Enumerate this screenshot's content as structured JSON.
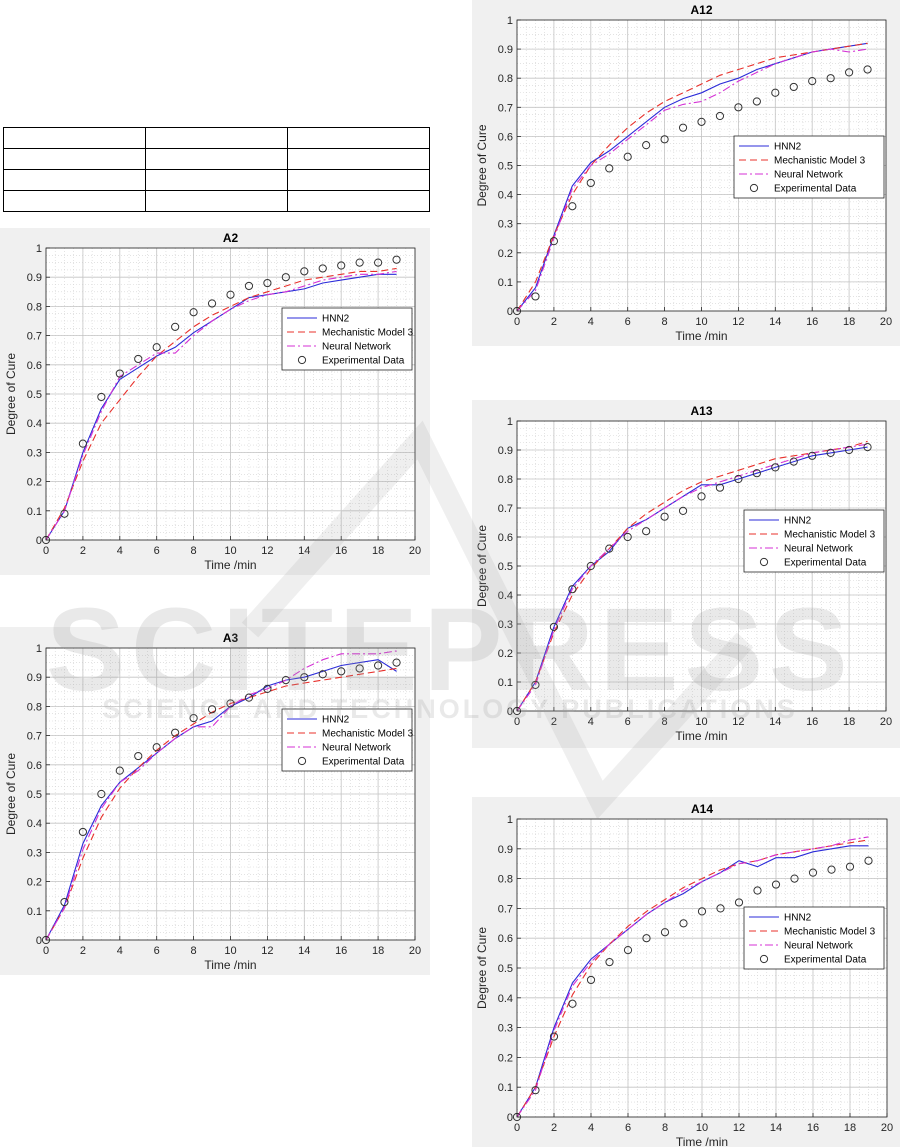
{
  "table": {
    "rows": 4,
    "cols": 3
  },
  "legend_entries": [
    "HNN2",
    "Mechanistic Model 3",
    "Neural Network",
    "Experimental Data"
  ],
  "colors": {
    "hnn2": "#2b2bd9",
    "mechanistic": "#e8302b",
    "neural": "#d431d4",
    "experimental": "#333333",
    "panel_bg": "#f0f0f0"
  },
  "watermark": {
    "line1": "SCITEPRESS",
    "line2": "SCIENCE AND TECHNOLOGY PUBLICATIONS"
  },
  "chart_data": [
    {
      "type": "line",
      "title": "A2",
      "xlabel": "Time /min",
      "ylabel": "Degree of Cure",
      "xlim": [
        0,
        20
      ],
      "ylim": [
        0,
        1
      ],
      "grid": true,
      "minor_grid": true,
      "legend_position": "middle-right",
      "x_ticks": [
        0,
        2,
        4,
        6,
        8,
        10,
        12,
        14,
        16,
        18,
        20
      ],
      "y_ticks": [
        0,
        0.1,
        0.2,
        0.3,
        0.4,
        0.5,
        0.6,
        0.7,
        0.8,
        0.9,
        1
      ],
      "series": [
        {
          "name": "HNN2",
          "style": "solid",
          "x": [
            0,
            1,
            2,
            3,
            4,
            5,
            6,
            7,
            8,
            9,
            10,
            11,
            12,
            13,
            14,
            15,
            16,
            17,
            18,
            19
          ],
          "y": [
            0,
            0.1,
            0.3,
            0.45,
            0.55,
            0.59,
            0.63,
            0.66,
            0.71,
            0.75,
            0.79,
            0.83,
            0.84,
            0.85,
            0.86,
            0.88,
            0.89,
            0.9,
            0.91,
            0.91
          ]
        },
        {
          "name": "Mechanistic Model 3",
          "style": "dashed",
          "x": [
            0,
            1,
            2,
            3,
            4,
            5,
            6,
            7,
            8,
            9,
            10,
            11,
            12,
            13,
            14,
            15,
            16,
            17,
            18,
            19
          ],
          "y": [
            0,
            0.11,
            0.27,
            0.4,
            0.48,
            0.56,
            0.63,
            0.68,
            0.73,
            0.77,
            0.8,
            0.83,
            0.85,
            0.87,
            0.89,
            0.9,
            0.91,
            0.92,
            0.92,
            0.93
          ]
        },
        {
          "name": "Neural Network",
          "style": "dashdot",
          "x": [
            0,
            1,
            2,
            3,
            4,
            5,
            6,
            7,
            8,
            9,
            10,
            11,
            12,
            13,
            14,
            15,
            16,
            17,
            18,
            19
          ],
          "y": [
            0,
            0.1,
            0.29,
            0.44,
            0.56,
            0.6,
            0.64,
            0.64,
            0.7,
            0.75,
            0.79,
            0.82,
            0.84,
            0.85,
            0.87,
            0.89,
            0.9,
            0.91,
            0.91,
            0.92
          ]
        },
        {
          "name": "Experimental Data",
          "style": "markers",
          "x": [
            0,
            1,
            2,
            3,
            4,
            5,
            6,
            7,
            8,
            9,
            10,
            11,
            12,
            13,
            14,
            15,
            16,
            17,
            18,
            19
          ],
          "y": [
            0,
            0.09,
            0.33,
            0.49,
            0.57,
            0.62,
            0.66,
            0.73,
            0.78,
            0.81,
            0.84,
            0.87,
            0.88,
            0.9,
            0.92,
            0.93,
            0.94,
            0.95,
            0.95,
            0.96
          ]
        }
      ]
    },
    {
      "type": "line",
      "title": "A3",
      "xlabel": "Time /min",
      "ylabel": "Degree of Cure",
      "xlim": [
        0,
        20
      ],
      "ylim": [
        0,
        1
      ],
      "grid": true,
      "minor_grid": true,
      "legend_position": "top-right",
      "x_ticks": [
        0,
        2,
        4,
        6,
        8,
        10,
        12,
        14,
        16,
        18,
        20
      ],
      "y_ticks": [
        0,
        0.1,
        0.2,
        0.3,
        0.4,
        0.5,
        0.6,
        0.7,
        0.8,
        0.9,
        1
      ],
      "series": [
        {
          "name": "HNN2",
          "style": "solid",
          "x": [
            0,
            1,
            2,
            3,
            4,
            5,
            6,
            7,
            8,
            9,
            10,
            11,
            12,
            13,
            14,
            15,
            16,
            17,
            18,
            19
          ],
          "y": [
            0,
            0.12,
            0.33,
            0.46,
            0.54,
            0.59,
            0.64,
            0.69,
            0.73,
            0.75,
            0.8,
            0.83,
            0.87,
            0.89,
            0.9,
            0.92,
            0.94,
            0.95,
            0.96,
            0.92
          ]
        },
        {
          "name": "Mechanistic Model 3",
          "style": "dashed",
          "x": [
            0,
            1,
            2,
            3,
            4,
            5,
            6,
            7,
            8,
            9,
            10,
            11,
            12,
            13,
            14,
            15,
            16,
            17,
            18,
            19
          ],
          "y": [
            0,
            0.11,
            0.28,
            0.42,
            0.52,
            0.59,
            0.65,
            0.7,
            0.74,
            0.78,
            0.81,
            0.83,
            0.85,
            0.87,
            0.88,
            0.89,
            0.9,
            0.91,
            0.92,
            0.93
          ]
        },
        {
          "name": "Neural Network",
          "style": "dashdot",
          "x": [
            0,
            1,
            2,
            3,
            4,
            5,
            6,
            7,
            8,
            9,
            10,
            11,
            12,
            13,
            14,
            15,
            16,
            17,
            18,
            19
          ],
          "y": [
            0,
            0.11,
            0.31,
            0.45,
            0.54,
            0.58,
            0.64,
            0.69,
            0.73,
            0.73,
            0.8,
            0.84,
            0.86,
            0.89,
            0.93,
            0.96,
            0.98,
            0.98,
            0.98,
            0.99
          ]
        },
        {
          "name": "Experimental Data",
          "style": "markers",
          "x": [
            0,
            1,
            2,
            3,
            4,
            5,
            6,
            7,
            8,
            9,
            10,
            11,
            12,
            13,
            14,
            15,
            16,
            17,
            18,
            19
          ],
          "y": [
            0,
            0.13,
            0.37,
            0.5,
            0.58,
            0.63,
            0.66,
            0.71,
            0.76,
            0.79,
            0.81,
            0.83,
            0.86,
            0.89,
            0.9,
            0.91,
            0.92,
            0.93,
            0.94,
            0.95
          ]
        }
      ]
    },
    {
      "type": "line",
      "title": "A12",
      "xlabel": "Time /min",
      "ylabel": "Degree of Cure",
      "xlim": [
        0,
        20
      ],
      "ylim": [
        0,
        1
      ],
      "grid": true,
      "minor_grid": true,
      "legend_position": "middle-right",
      "x_ticks": [
        0,
        2,
        4,
        6,
        8,
        10,
        12,
        14,
        16,
        18,
        20
      ],
      "y_ticks": [
        0,
        0.1,
        0.2,
        0.3,
        0.4,
        0.5,
        0.6,
        0.7,
        0.8,
        0.9,
        1
      ],
      "series": [
        {
          "name": "HNN2",
          "style": "solid",
          "x": [
            0,
            1,
            2,
            3,
            4,
            5,
            6,
            7,
            8,
            9,
            10,
            11,
            12,
            13,
            14,
            15,
            16,
            17,
            18,
            19
          ],
          "y": [
            0,
            0.08,
            0.26,
            0.43,
            0.51,
            0.55,
            0.6,
            0.65,
            0.7,
            0.73,
            0.75,
            0.78,
            0.8,
            0.83,
            0.85,
            0.87,
            0.89,
            0.9,
            0.91,
            0.92
          ]
        },
        {
          "name": "Mechanistic Model 3",
          "style": "dashed",
          "x": [
            0,
            1,
            2,
            3,
            4,
            5,
            6,
            7,
            8,
            9,
            10,
            11,
            12,
            13,
            14,
            15,
            16,
            17,
            18,
            19
          ],
          "y": [
            0,
            0.1,
            0.26,
            0.4,
            0.5,
            0.57,
            0.63,
            0.68,
            0.72,
            0.75,
            0.78,
            0.81,
            0.83,
            0.85,
            0.87,
            0.88,
            0.89,
            0.9,
            0.91,
            0.92
          ]
        },
        {
          "name": "Neural Network",
          "style": "dashdot",
          "x": [
            0,
            1,
            2,
            3,
            4,
            5,
            6,
            7,
            8,
            9,
            10,
            11,
            12,
            13,
            14,
            15,
            16,
            17,
            18,
            19
          ],
          "y": [
            0,
            0.07,
            0.25,
            0.42,
            0.5,
            0.54,
            0.59,
            0.64,
            0.69,
            0.71,
            0.72,
            0.75,
            0.79,
            0.82,
            0.85,
            0.87,
            0.89,
            0.9,
            0.89,
            0.9
          ]
        },
        {
          "name": "Experimental Data",
          "style": "markers",
          "x": [
            0,
            1,
            2,
            3,
            4,
            5,
            6,
            7,
            8,
            9,
            10,
            11,
            12,
            13,
            14,
            15,
            16,
            17,
            18,
            19
          ],
          "y": [
            0,
            0.05,
            0.24,
            0.36,
            0.44,
            0.49,
            0.53,
            0.57,
            0.59,
            0.63,
            0.65,
            0.67,
            0.7,
            0.72,
            0.75,
            0.77,
            0.79,
            0.8,
            0.82,
            0.83
          ]
        }
      ]
    },
    {
      "type": "line",
      "title": "A13",
      "xlabel": "Time /min",
      "ylabel": "Degree of Cure",
      "xlim": [
        0,
        20
      ],
      "ylim": [
        0,
        1
      ],
      "grid": true,
      "minor_grid": true,
      "legend_position": "middle-right",
      "x_ticks": [
        0,
        2,
        4,
        6,
        8,
        10,
        12,
        14,
        16,
        18,
        20
      ],
      "y_ticks": [
        0,
        0.1,
        0.2,
        0.3,
        0.4,
        0.5,
        0.6,
        0.7,
        0.8,
        0.9,
        1
      ],
      "series": [
        {
          "name": "HNN2",
          "style": "solid",
          "x": [
            0,
            1,
            2,
            3,
            4,
            5,
            6,
            7,
            8,
            9,
            10,
            11,
            12,
            13,
            14,
            15,
            16,
            17,
            18,
            19
          ],
          "y": [
            0,
            0.1,
            0.29,
            0.43,
            0.5,
            0.55,
            0.63,
            0.66,
            0.7,
            0.74,
            0.78,
            0.78,
            0.8,
            0.82,
            0.84,
            0.86,
            0.88,
            0.89,
            0.9,
            0.91
          ]
        },
        {
          "name": "Mechanistic Model 3",
          "style": "dashed",
          "x": [
            0,
            1,
            2,
            3,
            4,
            5,
            6,
            7,
            8,
            9,
            10,
            11,
            12,
            13,
            14,
            15,
            16,
            17,
            18,
            19
          ],
          "y": [
            0,
            0.1,
            0.27,
            0.4,
            0.49,
            0.56,
            0.63,
            0.68,
            0.72,
            0.76,
            0.79,
            0.81,
            0.83,
            0.85,
            0.87,
            0.88,
            0.89,
            0.9,
            0.91,
            0.93
          ]
        },
        {
          "name": "Neural Network",
          "style": "dashdot",
          "x": [
            0,
            1,
            2,
            3,
            4,
            5,
            6,
            7,
            8,
            9,
            10,
            11,
            12,
            13,
            14,
            15,
            16,
            17,
            18,
            19
          ],
          "y": [
            0,
            0.09,
            0.28,
            0.42,
            0.5,
            0.56,
            0.62,
            0.66,
            0.7,
            0.74,
            0.77,
            0.79,
            0.81,
            0.83,
            0.85,
            0.87,
            0.89,
            0.9,
            0.91,
            0.92
          ]
        },
        {
          "name": "Experimental Data",
          "style": "markers",
          "x": [
            0,
            1,
            2,
            3,
            4,
            5,
            6,
            7,
            8,
            9,
            10,
            11,
            12,
            13,
            14,
            15,
            16,
            17,
            18,
            19
          ],
          "y": [
            0,
            0.09,
            0.29,
            0.42,
            0.5,
            0.56,
            0.6,
            0.62,
            0.67,
            0.69,
            0.74,
            0.77,
            0.8,
            0.82,
            0.84,
            0.86,
            0.88,
            0.89,
            0.9,
            0.91
          ]
        }
      ]
    },
    {
      "type": "line",
      "title": "A14",
      "xlabel": "Time /min",
      "ylabel": "Degree of Cure",
      "xlim": [
        0,
        20
      ],
      "ylim": [
        0,
        1
      ],
      "grid": true,
      "minor_grid": true,
      "legend_position": "middle-right",
      "x_ticks": [
        0,
        2,
        4,
        6,
        8,
        10,
        12,
        14,
        16,
        18,
        20
      ],
      "y_ticks": [
        0,
        0.1,
        0.2,
        0.3,
        0.4,
        0.5,
        0.6,
        0.7,
        0.8,
        0.9,
        1
      ],
      "series": [
        {
          "name": "HNN2",
          "style": "solid",
          "x": [
            0,
            1,
            2,
            3,
            4,
            5,
            6,
            7,
            8,
            9,
            10,
            11,
            12,
            13,
            14,
            15,
            16,
            17,
            18,
            19
          ],
          "y": [
            0,
            0.1,
            0.3,
            0.45,
            0.53,
            0.58,
            0.63,
            0.68,
            0.72,
            0.75,
            0.79,
            0.82,
            0.86,
            0.84,
            0.87,
            0.87,
            0.89,
            0.9,
            0.91,
            0.91
          ]
        },
        {
          "name": "Mechanistic Model 3",
          "style": "dashed",
          "x": [
            0,
            1,
            2,
            3,
            4,
            5,
            6,
            7,
            8,
            9,
            10,
            11,
            12,
            13,
            14,
            15,
            16,
            17,
            18,
            19
          ],
          "y": [
            0,
            0.1,
            0.27,
            0.41,
            0.51,
            0.58,
            0.64,
            0.69,
            0.73,
            0.77,
            0.8,
            0.83,
            0.85,
            0.86,
            0.88,
            0.89,
            0.9,
            0.91,
            0.92,
            0.93
          ]
        },
        {
          "name": "Neural Network",
          "style": "dashdot",
          "x": [
            0,
            1,
            2,
            3,
            4,
            5,
            6,
            7,
            8,
            9,
            10,
            11,
            12,
            13,
            14,
            15,
            16,
            17,
            18,
            19
          ],
          "y": [
            0,
            0.09,
            0.29,
            0.44,
            0.52,
            0.58,
            0.63,
            0.68,
            0.72,
            0.76,
            0.79,
            0.82,
            0.85,
            0.86,
            0.88,
            0.89,
            0.9,
            0.91,
            0.93,
            0.94
          ]
        },
        {
          "name": "Experimental Data",
          "style": "markers",
          "x": [
            0,
            1,
            2,
            3,
            4,
            5,
            6,
            7,
            8,
            9,
            10,
            11,
            12,
            13,
            14,
            15,
            16,
            17,
            18,
            19
          ],
          "y": [
            0,
            0.09,
            0.27,
            0.38,
            0.46,
            0.52,
            0.56,
            0.6,
            0.62,
            0.65,
            0.69,
            0.7,
            0.72,
            0.76,
            0.78,
            0.8,
            0.82,
            0.83,
            0.84,
            0.86
          ]
        }
      ]
    }
  ]
}
